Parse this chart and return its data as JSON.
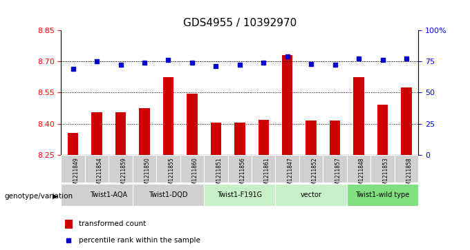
{
  "title": "GDS4955 / 10392970",
  "samples": [
    "GSM1211849",
    "GSM1211854",
    "GSM1211859",
    "GSM1211850",
    "GSM1211855",
    "GSM1211860",
    "GSM1211851",
    "GSM1211856",
    "GSM1211861",
    "GSM1211847",
    "GSM1211852",
    "GSM1211857",
    "GSM1211848",
    "GSM1211853",
    "GSM1211858"
  ],
  "red_values": [
    8.355,
    8.455,
    8.455,
    8.475,
    8.625,
    8.545,
    8.405,
    8.405,
    8.42,
    8.73,
    8.415,
    8.415,
    8.625,
    8.49,
    8.575
  ],
  "blue_values": [
    69,
    75,
    72,
    74,
    76,
    74,
    71,
    72,
    74,
    79,
    73,
    72,
    77,
    76,
    77
  ],
  "groups": [
    {
      "label": "Twist1-AQA",
      "start": 0,
      "end": 3,
      "color": "#d0d0d0"
    },
    {
      "label": "Twist1-DQD",
      "start": 3,
      "end": 5,
      "color": "#d0d0d0"
    },
    {
      "label": "Twist1-F191G",
      "start": 6,
      "end": 8,
      "color": "#c8f0c8"
    },
    {
      "label": "vector",
      "start": 9,
      "end": 11,
      "color": "#c8f0c8"
    },
    {
      "label": "Twist1-wild type",
      "start": 12,
      "end": 14,
      "color": "#80e080"
    }
  ],
  "sample_box_color": "#d0d0d0",
  "ylim_left": [
    8.25,
    8.85
  ],
  "ylim_right": [
    0,
    100
  ],
  "yticks_left": [
    8.25,
    8.4,
    8.55,
    8.7,
    8.85
  ],
  "yticks_right": [
    0,
    25,
    50,
    75,
    100
  ],
  "ytick_labels_right": [
    "0",
    "25",
    "50",
    "75",
    "100%"
  ],
  "bar_color": "#cc0000",
  "dot_color": "#0000cc",
  "background_color": "#ffffff",
  "legend_red": "transformed count",
  "legend_blue": "percentile rank within the sample",
  "genotype_label": "genotype/variation"
}
